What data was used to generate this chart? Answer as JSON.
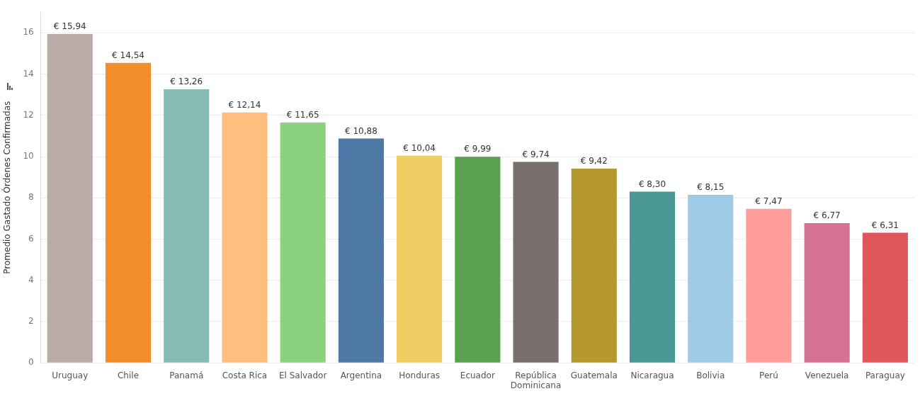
{
  "chart_data": {
    "type": "bar",
    "ylabel": "Promedio Gastado Órdenes Confirmadas",
    "categories": [
      "Uruguay",
      "Chile",
      "Panamá",
      "Costa Rica",
      "El Salvador",
      "Argentina",
      "Honduras",
      "Ecuador",
      "República Dominicana",
      "Guatemala",
      "Nicaragua",
      "Bolivia",
      "Perú",
      "Venezuela",
      "Paraguay"
    ],
    "values": [
      15.94,
      14.54,
      13.26,
      12.14,
      11.65,
      10.88,
      10.04,
      9.99,
      9.74,
      9.42,
      8.3,
      8.15,
      7.47,
      6.77,
      6.31
    ],
    "value_labels": [
      "€ 15,94",
      "€ 14,54",
      "€ 13,26",
      "€ 12,14",
      "€ 11,65",
      "€ 10,88",
      "€ 10,04",
      "€ 9,99",
      "€ 9,74",
      "€ 9,42",
      "€ 8,30",
      "€ 8,15",
      "€ 7,47",
      "€ 6,77",
      "€ 6,31"
    ],
    "colors": [
      "#b9aca6",
      "#f28e2b",
      "#86bcb6",
      "#ffbe7d",
      "#8cd17d",
      "#4e79a7",
      "#f1ce63",
      "#59a14f",
      "#79706e",
      "#b6992d",
      "#499894",
      "#a0cbe8",
      "#ff9d9a",
      "#d37295",
      "#e15759"
    ],
    "ylim": [
      0,
      17
    ],
    "yticks": [
      0,
      2,
      4,
      6,
      8,
      10,
      12,
      14,
      16
    ],
    "grid": "y",
    "legend": false
  }
}
